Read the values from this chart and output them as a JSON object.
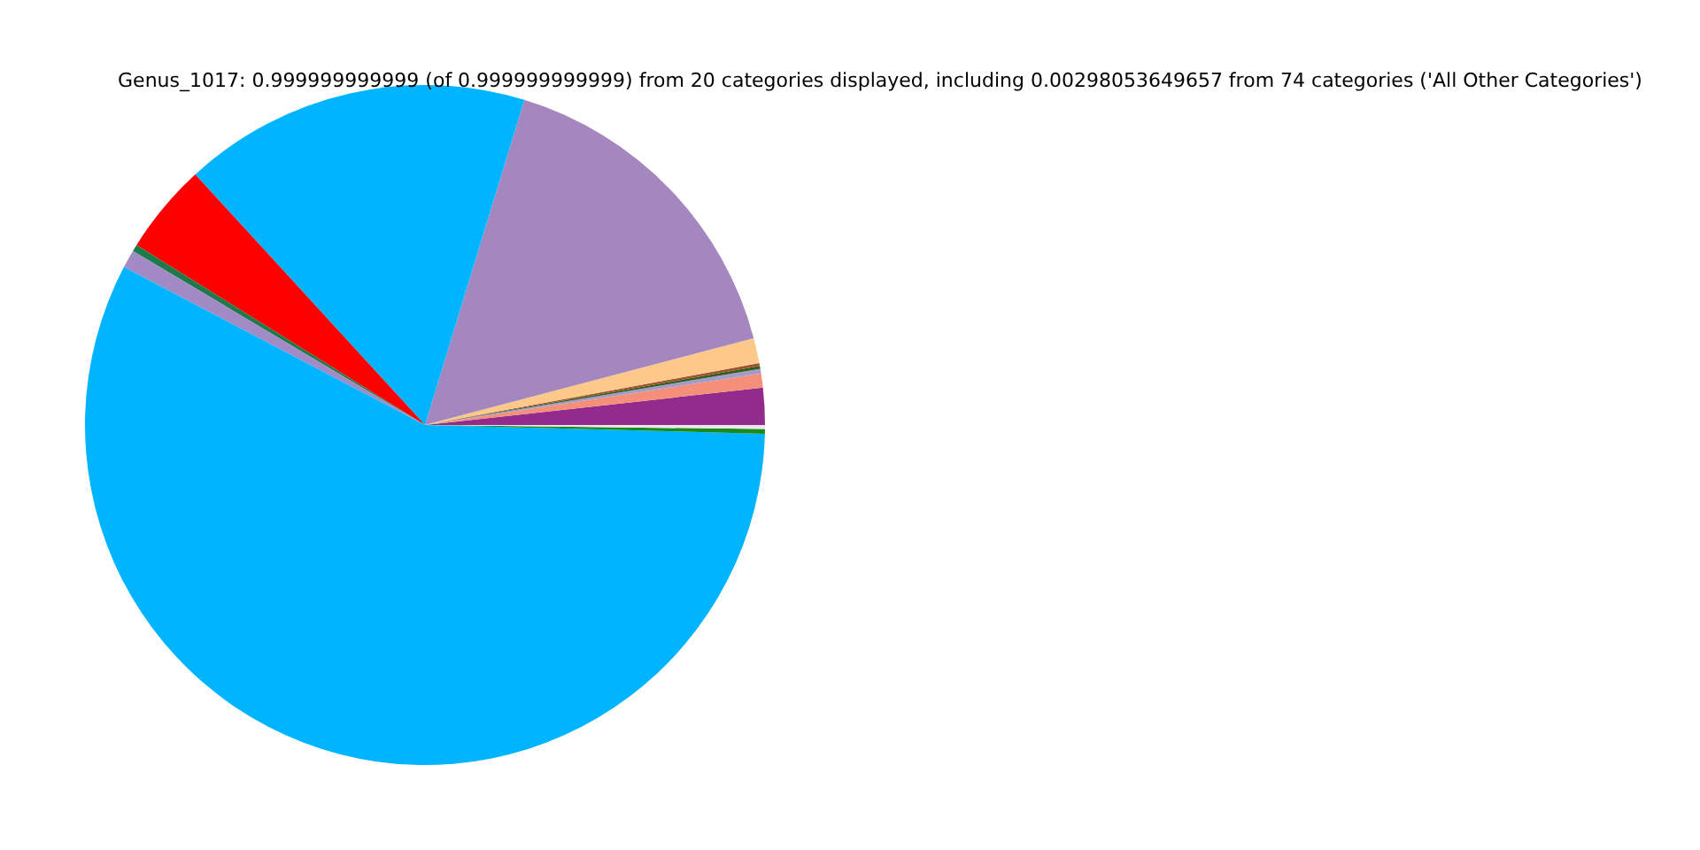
{
  "chart_data": {
    "type": "pie",
    "title": "Genus_1017: 0.999999999999 (of 0.999999999999) from 20 categories displayed, including 0.00298053649657 from 74 categories ('All Other Categories')",
    "categories": [
      null,
      null,
      null,
      null,
      null,
      null,
      null,
      null,
      null,
      null,
      null,
      null,
      null,
      null
    ],
    "values": [
      1.75,
      0.67,
      0.22,
      0.14,
      0.14,
      1.19,
      16.17,
      16.53,
      4.31,
      0.33,
      0.86,
      57.28,
      0.22,
      0.19
    ],
    "colors": [
      "#922b8c",
      "#f4907a",
      "#a49bc8",
      "#2f5f1f",
      "#a0522d",
      "#fdc98a",
      "#a487bf",
      "#00b4ff",
      "#ff0000",
      "#1e7a4a",
      "#a28bc4",
      "#00b4ff",
      "#1a8a1a",
      "#e8e8e8"
    ]
  }
}
